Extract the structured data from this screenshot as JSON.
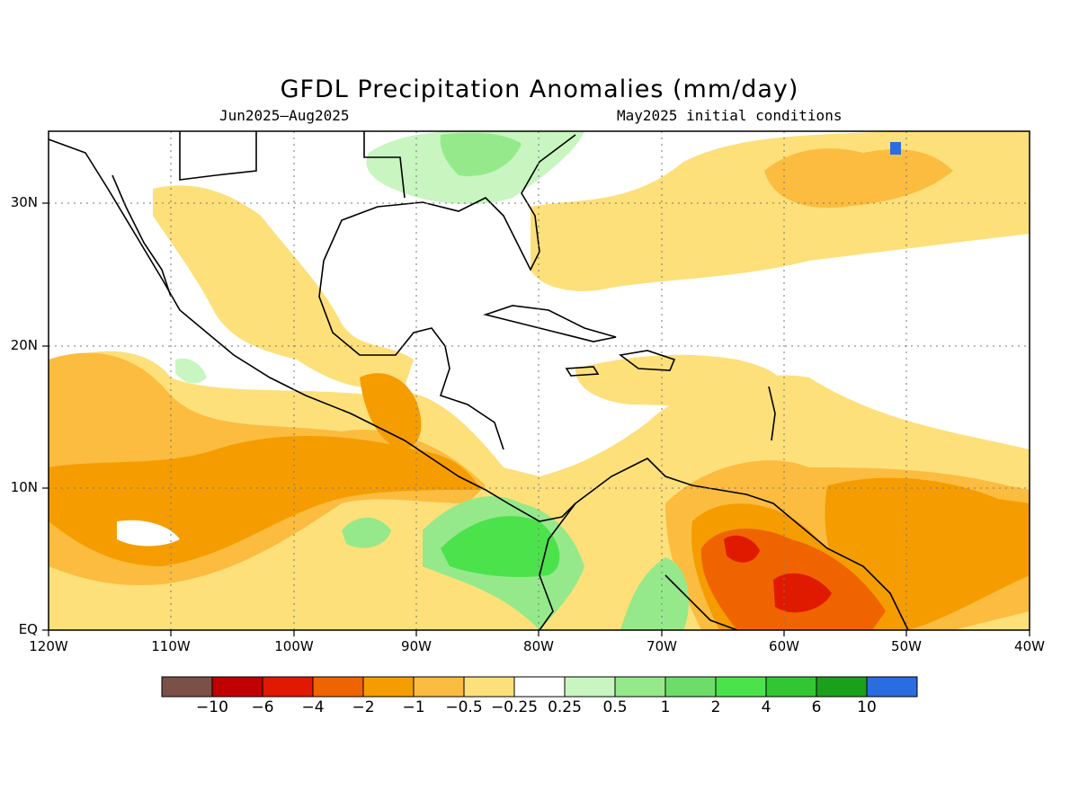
{
  "title": "GFDL Precipitation Anomalies (mm/day)",
  "subtitle_left": "Jun2025–Aug2025",
  "subtitle_right": "May2025 initial conditions",
  "axes": {
    "lat_labels": [
      "30N",
      "20N",
      "10N",
      "EQ"
    ],
    "lon_labels": [
      "120W",
      "110W",
      "100W",
      "90W",
      "80W",
      "70W",
      "60W",
      "50W",
      "40W"
    ],
    "lat_range": [
      0,
      35
    ],
    "lon_range": [
      -120,
      -40
    ],
    "grid": "dotted"
  },
  "colorbar": {
    "colors": [
      "#7a5048",
      "#c00000",
      "#e01a00",
      "#f06400",
      "#f59d00",
      "#fbbc40",
      "#fde07a",
      "#ffffff",
      "#c8f5c0",
      "#96e98a",
      "#6edc6a",
      "#4ce24c",
      "#33c633",
      "#1aa01a",
      "#2a6de0"
    ],
    "labels": [
      "−10",
      "−6",
      "−4",
      "−2",
      "−1",
      "−0.5",
      "−0.25",
      "0.25",
      "0.5",
      "1",
      "2",
      "4",
      "6",
      "10"
    ]
  },
  "chart_data": {
    "type": "heatmap",
    "title": "GFDL Precipitation Anomalies (mm/day)",
    "period": "Jun2025–Aug2025",
    "initial_conditions": "May2025 initial conditions",
    "units": "mm/day",
    "levels": [
      -10,
      -6,
      -4,
      -2,
      -1,
      -0.5,
      -0.25,
      0.25,
      0.5,
      1,
      2,
      4,
      6,
      10
    ]
  }
}
